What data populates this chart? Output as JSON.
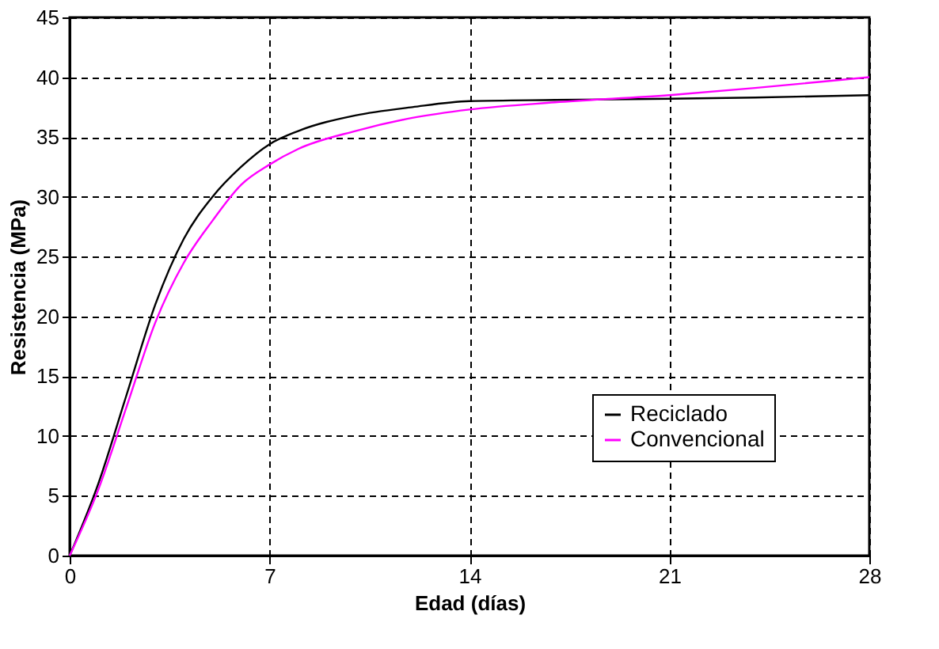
{
  "chart_data": {
    "type": "line",
    "xlabel": "Edad (días)",
    "ylabel": "Resistencia (MPa)",
    "xlim": [
      0,
      28
    ],
    "xticks": [
      0,
      7,
      14,
      21,
      28
    ],
    "ylim": [
      0,
      45
    ],
    "yticks": [
      0,
      5,
      10,
      15,
      20,
      25,
      30,
      35,
      40,
      45
    ],
    "grid": true,
    "legend": "bottom right",
    "marker": "none",
    "line_style": "solid",
    "series": [
      {
        "name": "Reciclado",
        "color": "#000000",
        "x": [
          0,
          1,
          2,
          3,
          4,
          5,
          6,
          7,
          8,
          10,
          12,
          14,
          17,
          21,
          24,
          28
        ],
        "values": [
          0,
          6,
          13.5,
          21,
          26.5,
          30,
          32.5,
          34.4,
          35.5,
          36.8,
          37.5,
          38,
          38.1,
          38.2,
          38.3,
          38.5
        ]
      },
      {
        "name": "Convencional",
        "color": "#ff00ff",
        "x": [
          0,
          1,
          2,
          3,
          4,
          5,
          6,
          7,
          8,
          10,
          12,
          14,
          17,
          21,
          24,
          28
        ],
        "values": [
          0,
          5.5,
          12.5,
          19.5,
          24.5,
          28,
          31,
          32.7,
          34,
          35.5,
          36.6,
          37.3,
          37.9,
          38.5,
          39.1,
          40
        ]
      }
    ]
  }
}
